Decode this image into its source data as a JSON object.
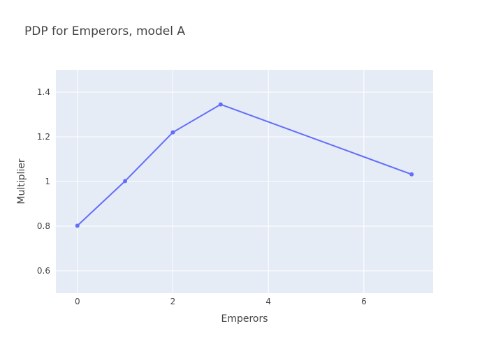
{
  "chart_data": {
    "type": "line",
    "title": "PDP for Emperors, model A",
    "xlabel": "Emperors",
    "ylabel": "Multiplier",
    "xlim": [
      -0.45,
      7.45
    ],
    "ylim": [
      0.5,
      1.5
    ],
    "xticks": [
      0,
      2,
      4,
      6
    ],
    "yticks": [
      0.6,
      0.8,
      1,
      1.2,
      1.4
    ],
    "xtick_labels": [
      "0",
      "2",
      "4",
      "6"
    ],
    "ytick_labels": [
      "0.6",
      "0.8",
      "1",
      "1.2",
      "1.4"
    ],
    "grid": true,
    "legend": "none",
    "series": [
      {
        "x": [
          0,
          1,
          2,
          3,
          7
        ],
        "y": [
          0.802,
          1.002,
          1.22,
          1.345,
          1.032
        ],
        "color": "#636efa",
        "mode": "lines+markers"
      }
    ],
    "colors": {
      "plot_background": "#e5ecf6",
      "grid": "#ffffff",
      "text": "#444444"
    }
  }
}
